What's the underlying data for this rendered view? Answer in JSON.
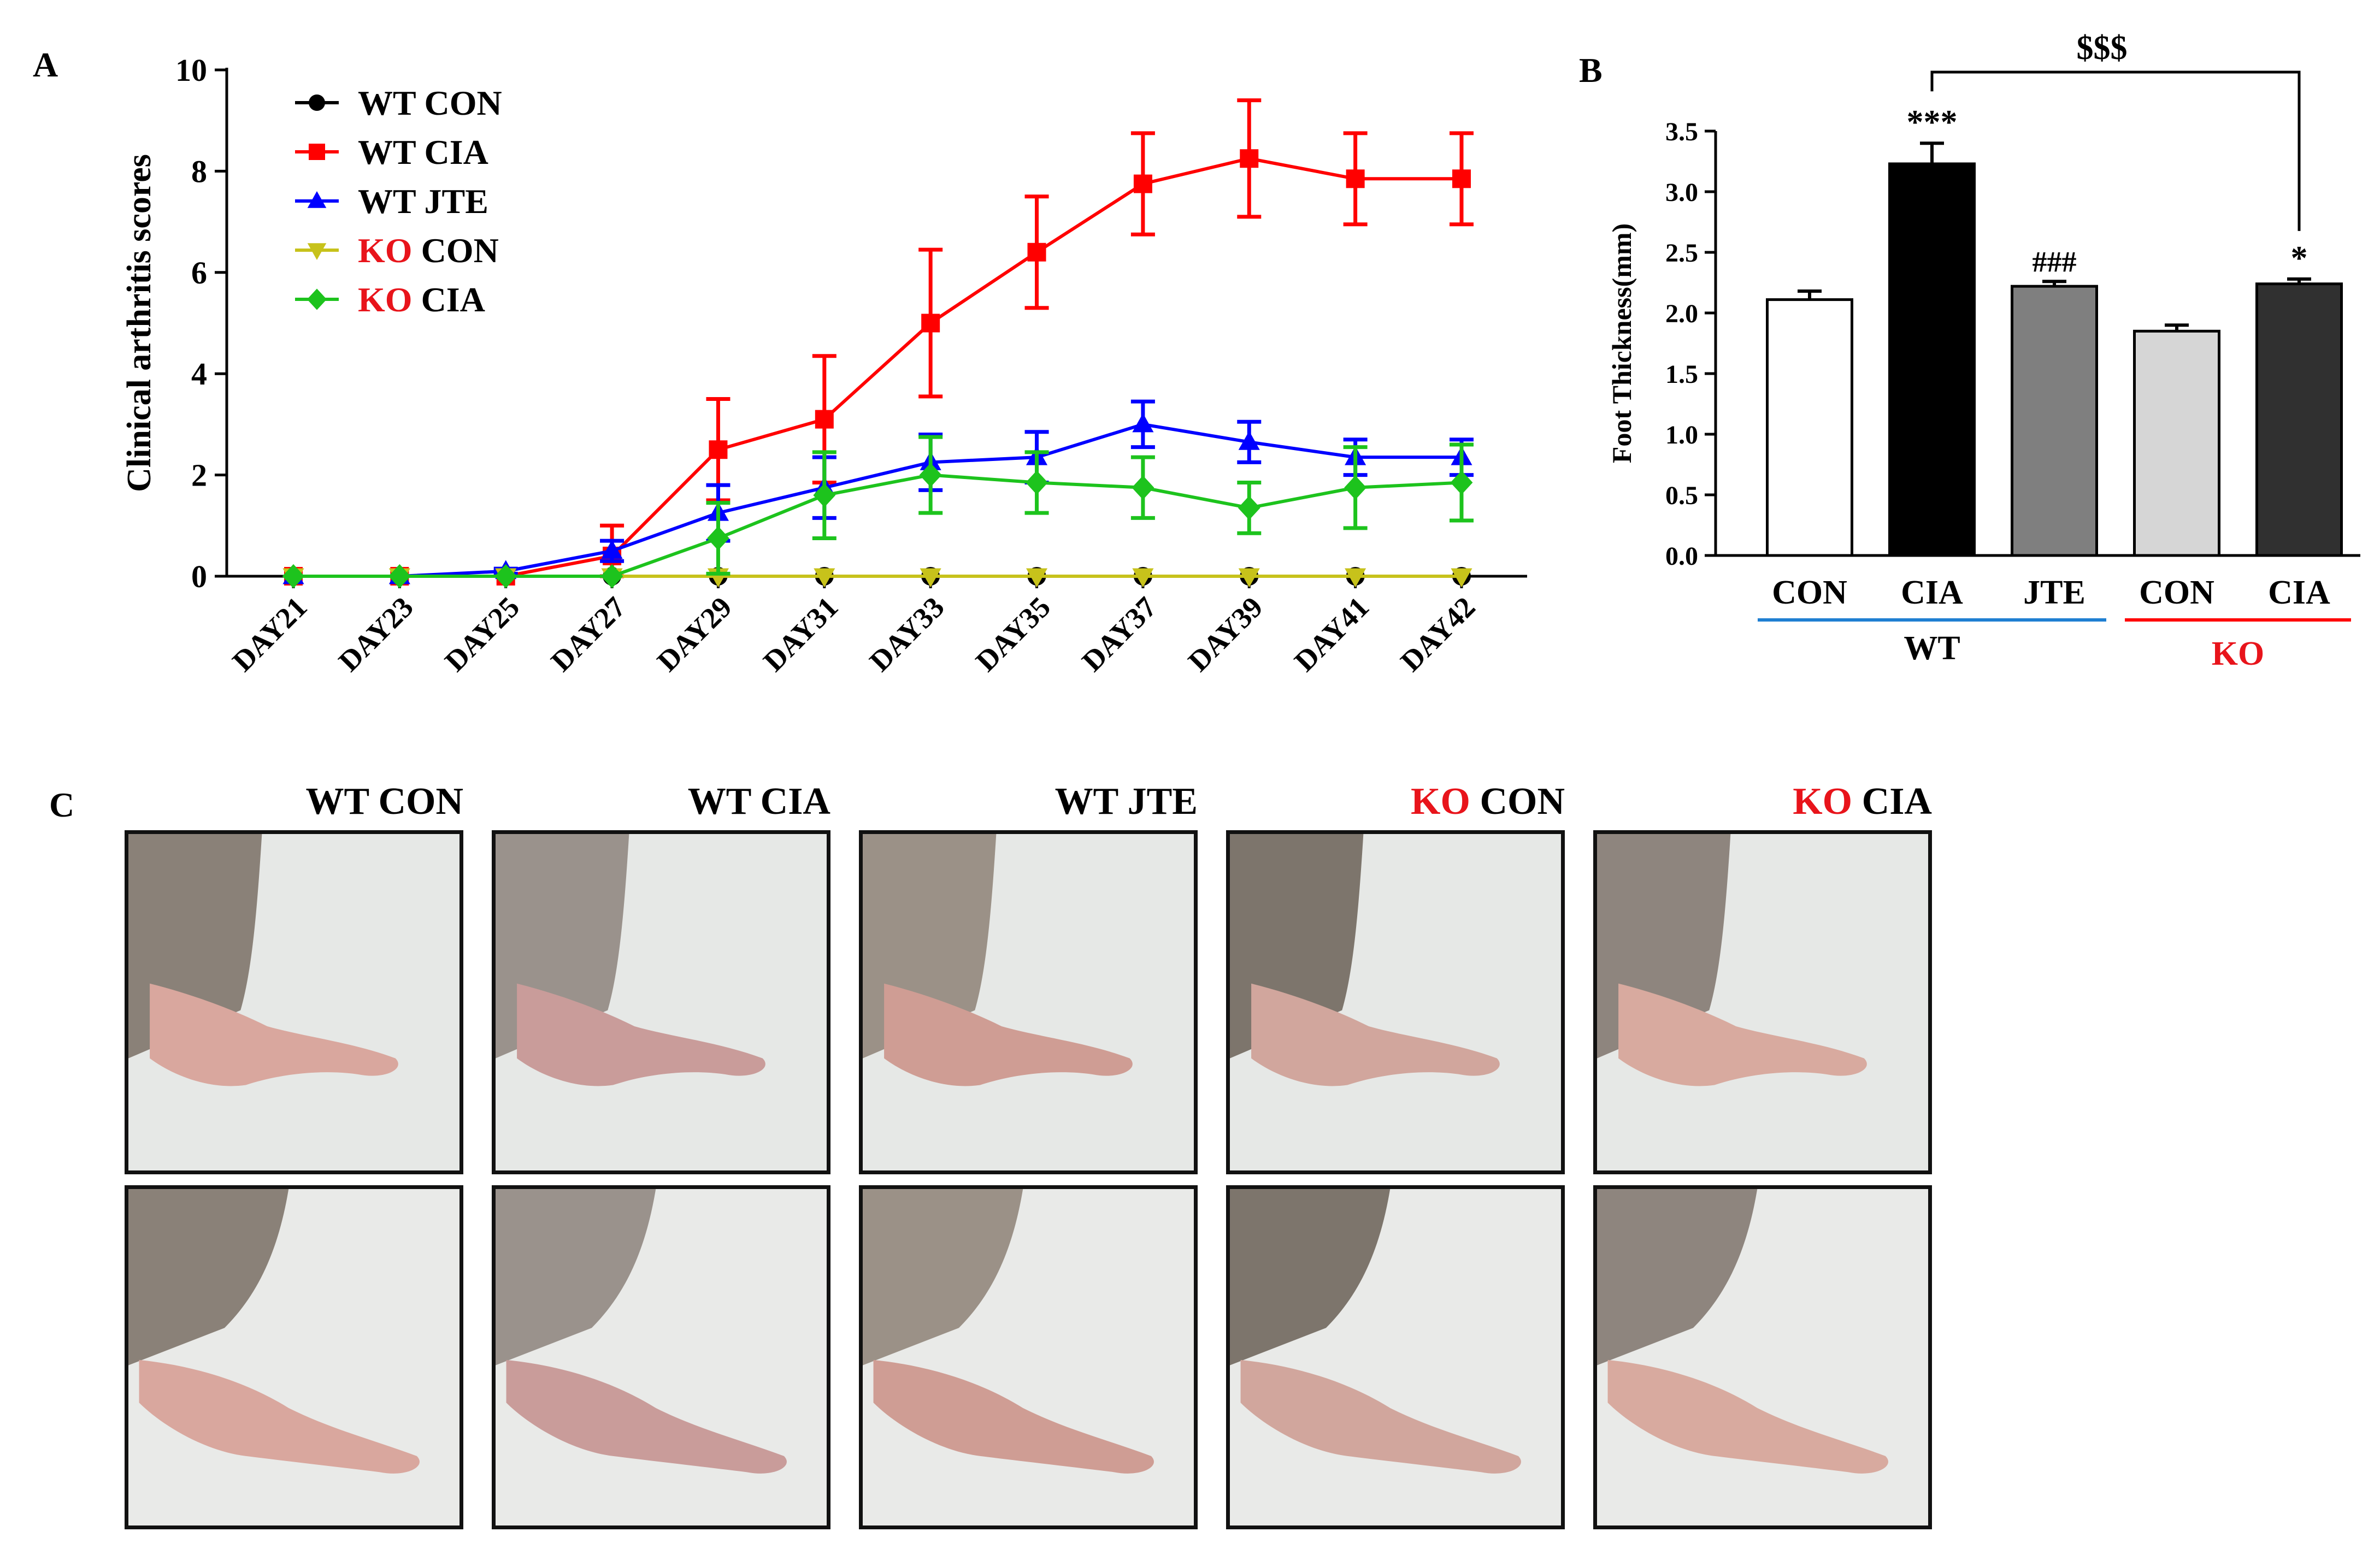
{
  "panel_labels": {
    "a": "A",
    "b": "B",
    "c": "C"
  },
  "colors": {
    "wt_con": "#000000",
    "wt_cia": "#ff0000",
    "wt_jte": "#0000ff",
    "ko_con": "#c7c21b",
    "ko_cia": "#1dc31d",
    "ko_text": "#e8141b",
    "wt_underline": "#1f7fd2",
    "ko_underline": "#ff0000"
  },
  "chart_data": [
    {
      "type": "line",
      "ylabel": "Clinical arthritis scores",
      "xlabel": "",
      "ylim": [
        0,
        10
      ],
      "yticks": [
        0,
        2,
        4,
        6,
        8,
        10
      ],
      "categories": [
        "DAY21",
        "DAY23",
        "DAY25",
        "DAY27",
        "DAY29",
        "DAY31",
        "DAY33",
        "DAY35",
        "DAY37",
        "DAY39",
        "DAY41",
        "DAY42"
      ],
      "legend_position": "top-left",
      "series": [
        {
          "name": "WT CON",
          "name_prefix": "WT",
          "name_suffix": " CON",
          "color": "#000000",
          "marker": "circle",
          "values": [
            0,
            0,
            0,
            0,
            0,
            0,
            0,
            0,
            0,
            0,
            0,
            0
          ],
          "errors": [
            0,
            0,
            0,
            0,
            0,
            0,
            0,
            0,
            0,
            0,
            0,
            0
          ]
        },
        {
          "name": "WT CIA",
          "name_prefix": "WT",
          "name_suffix": " CIA",
          "color": "#ff0000",
          "marker": "square",
          "values": [
            0,
            0,
            0,
            0.4,
            2.5,
            3.1,
            5.0,
            6.4,
            7.75,
            8.25,
            7.85,
            7.85
          ],
          "errors": [
            0,
            0,
            0,
            0.6,
            1.0,
            1.25,
            1.45,
            1.1,
            1.0,
            1.15,
            0.9,
            0.9
          ]
        },
        {
          "name": "WT JTE",
          "name_prefix": "WT",
          "name_suffix": " JTE",
          "color": "#0000ff",
          "marker": "triangle-up",
          "values": [
            0,
            0,
            0.1,
            0.5,
            1.25,
            1.75,
            2.25,
            2.35,
            3.0,
            2.65,
            2.35,
            2.35
          ],
          "errors": [
            0,
            0,
            0.05,
            0.2,
            0.55,
            0.6,
            0.55,
            0.5,
            0.45,
            0.4,
            0.35,
            0.35
          ]
        },
        {
          "name": "KO CON",
          "name_prefix": "KO",
          "name_suffix": " CON",
          "color": "#c7c21b",
          "marker": "triangle-down",
          "values": [
            0,
            0,
            0,
            0,
            0,
            0,
            0,
            0,
            0,
            0,
            0,
            0
          ],
          "errors": [
            0,
            0,
            0,
            0,
            0,
            0,
            0,
            0,
            0,
            0,
            0,
            0
          ]
        },
        {
          "name": "KO CIA",
          "name_prefix": "KO",
          "name_suffix": " CIA",
          "color": "#1dc31d",
          "marker": "diamond",
          "values": [
            0,
            0,
            0,
            0,
            0.75,
            1.6,
            2.0,
            1.85,
            1.75,
            1.35,
            1.75,
            1.85
          ],
          "errors": [
            0,
            0,
            0,
            0,
            0.7,
            0.85,
            0.75,
            0.6,
            0.6,
            0.5,
            0.8,
            0.75
          ]
        }
      ]
    },
    {
      "type": "bar",
      "ylabel": "Foot Thickness(mm)",
      "xlabel": "",
      "ylim": [
        0,
        3.5
      ],
      "yticks": [
        "0.0",
        "0.5",
        "1.0",
        "1.5",
        "2.0",
        "2.5",
        "3.0",
        "3.5"
      ],
      "categories": [
        "CON",
        "CIA",
        "JTE",
        "CON",
        "CIA"
      ],
      "values": [
        2.11,
        3.23,
        2.22,
        1.85,
        2.24
      ],
      "errors": [
        0.07,
        0.17,
        0.04,
        0.05,
        0.04
      ],
      "fills": [
        "#ffffff",
        "#000000",
        "#7f7f7f",
        "#d6d6d6",
        "#303030"
      ],
      "significance": [
        "",
        "***",
        "###",
        "",
        "*"
      ],
      "bracket_label": "$$$",
      "groups": [
        {
          "name": "WT"
        },
        {
          "name": "KO"
        }
      ]
    }
  ],
  "photo_panel": {
    "titles": [
      {
        "prefix": "WT",
        "suffix": " CON"
      },
      {
        "prefix": "WT",
        "suffix": " CIA"
      },
      {
        "prefix": "WT",
        "suffix": " JTE"
      },
      {
        "prefix": "KO",
        "suffix": " CON"
      },
      {
        "prefix": "KO",
        "suffix": " CIA"
      }
    ]
  }
}
